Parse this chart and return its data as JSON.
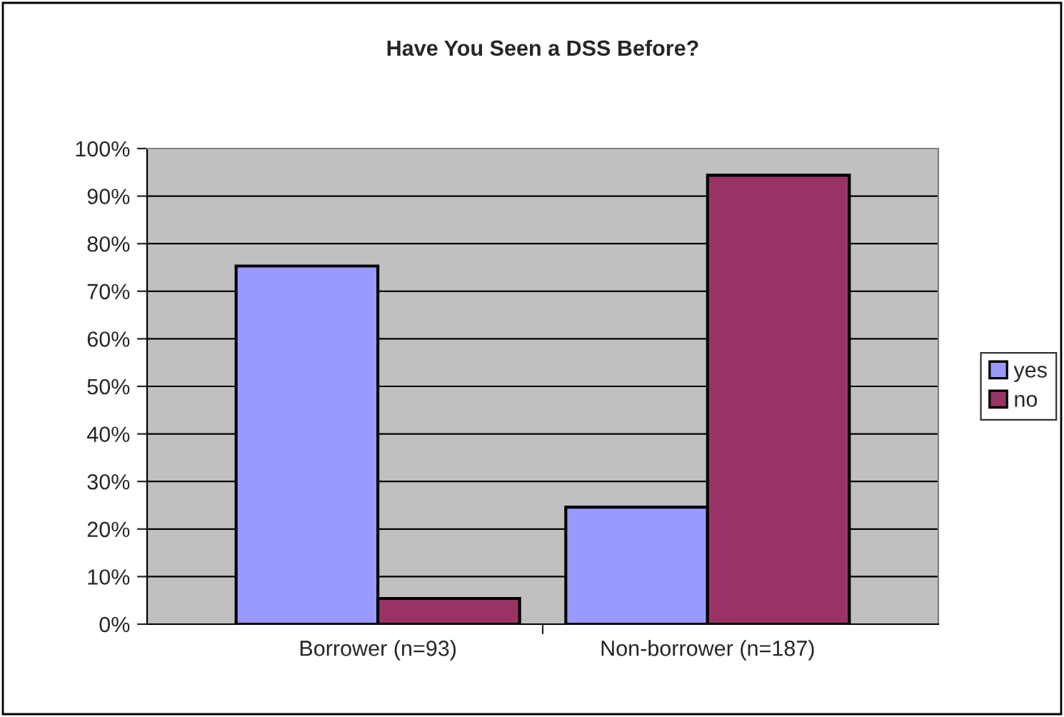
{
  "chart_data": {
    "type": "bar",
    "title": "Have You Seen a DSS Before?",
    "categories": [
      "Borrower (n=93)",
      "Non-borrower (n=187)"
    ],
    "series": [
      {
        "name": "yes",
        "color": "#9999ff",
        "values": [
          75.3,
          24.6
        ]
      },
      {
        "name": "no",
        "color": "#993366",
        "values": [
          5.4,
          94.4
        ]
      }
    ],
    "ylim": [
      0,
      100
    ],
    "yticks": [
      {
        "value": 0,
        "label": "0%"
      },
      {
        "value": 10,
        "label": "10%"
      },
      {
        "value": 20,
        "label": "20%"
      },
      {
        "value": 30,
        "label": "30%"
      },
      {
        "value": 40,
        "label": "40%"
      },
      {
        "value": 50,
        "label": "50%"
      },
      {
        "value": 60,
        "label": "60%"
      },
      {
        "value": 70,
        "label": "70%"
      },
      {
        "value": 80,
        "label": "80%"
      },
      {
        "value": 90,
        "label": "90%"
      },
      {
        "value": 100,
        "label": "100%"
      }
    ],
    "grid": "y",
    "legend": "right"
  }
}
